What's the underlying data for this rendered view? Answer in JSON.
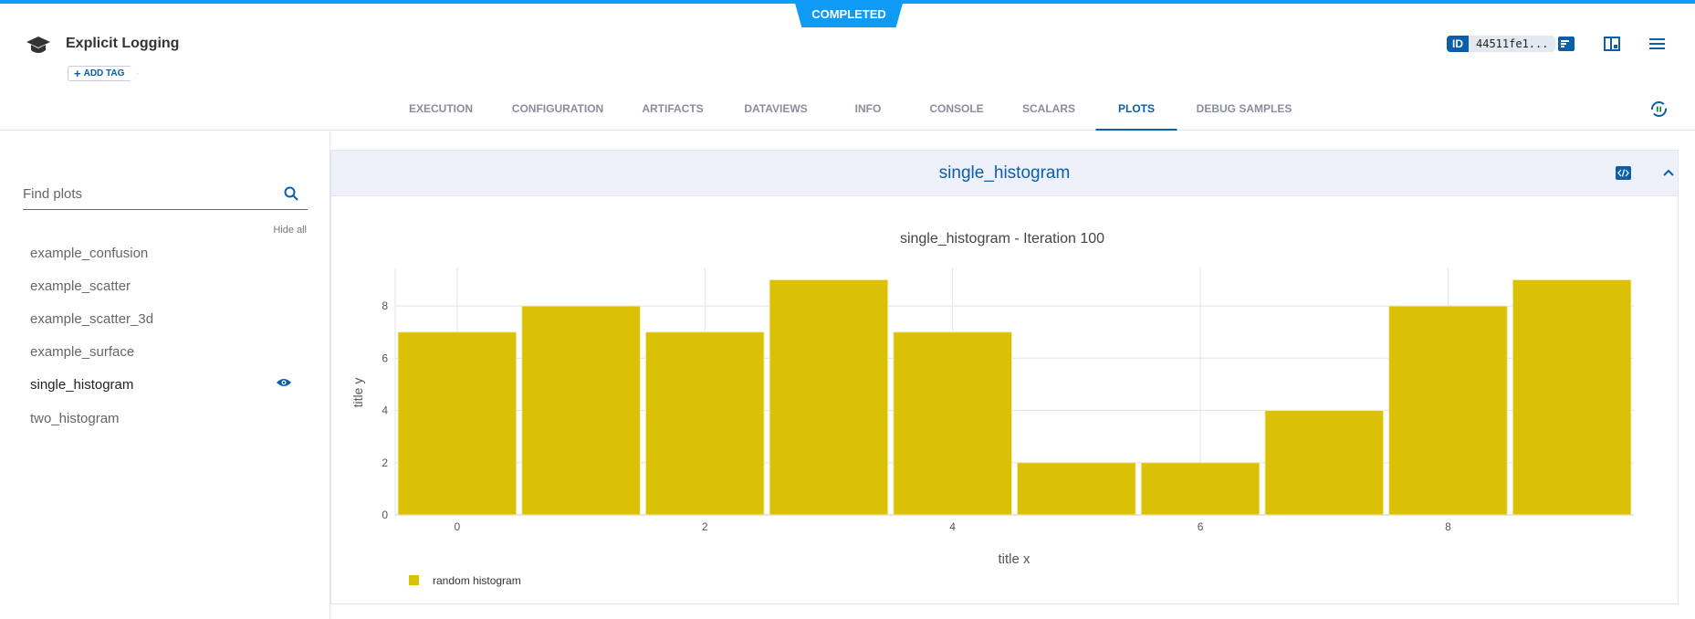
{
  "status": "COMPLETED",
  "header": {
    "title": "Explicit Logging",
    "add_tag": "ADD TAG",
    "id_label": "ID",
    "id_value": "44511fe1..."
  },
  "tabs": [
    {
      "label": "EXECUTION"
    },
    {
      "label": "CONFIGURATION"
    },
    {
      "label": "ARTIFACTS"
    },
    {
      "label": "DATAVIEWS"
    },
    {
      "label": "INFO"
    },
    {
      "label": "CONSOLE"
    },
    {
      "label": "SCALARS"
    },
    {
      "label": "PLOTS",
      "active": true
    },
    {
      "label": "DEBUG SAMPLES"
    }
  ],
  "sidebar": {
    "search_placeholder": "Find plots",
    "hide_all": "Hide all",
    "items": [
      {
        "label": "example_confusion"
      },
      {
        "label": "example_scatter"
      },
      {
        "label": "example_scatter_3d"
      },
      {
        "label": "example_surface"
      },
      {
        "label": "single_histogram",
        "selected": true
      },
      {
        "label": "two_histogram"
      }
    ]
  },
  "panel": {
    "title": "single_histogram"
  },
  "colors": {
    "accent": "#0b5ea8",
    "status": "#0d9bf5",
    "bar": "#dbc105"
  },
  "chart_data": {
    "type": "bar",
    "title": "single_histogram - Iteration 100",
    "xlabel": "title x",
    "ylabel": "title y",
    "x": [
      0,
      1,
      2,
      3,
      4,
      5,
      6,
      7,
      8,
      9
    ],
    "series": [
      {
        "name": "random histogram",
        "values": [
          7,
          8,
          7,
          9,
          7,
          2,
          2,
          4,
          8,
          9
        ]
      }
    ],
    "xticks": [
      0,
      2,
      4,
      6,
      8
    ],
    "yticks": [
      0,
      2,
      4,
      6,
      8
    ],
    "xlim": [
      -0.5,
      9.5
    ],
    "ylim": [
      0,
      9.47
    ],
    "grid": true,
    "legend": "bottom-left"
  }
}
